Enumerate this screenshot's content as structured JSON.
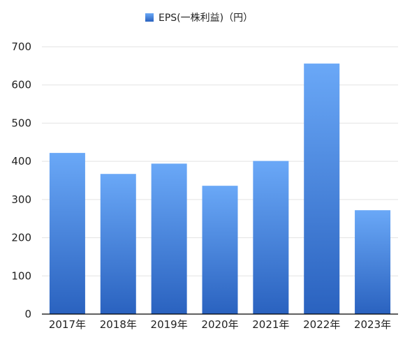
{
  "chart_data": {
    "type": "bar",
    "categories": [
      "2017年",
      "2018年",
      "2019年",
      "2020年",
      "2021年",
      "2022年",
      "2023年"
    ],
    "series": [
      {
        "name": "EPS(一株利益)（円）",
        "values": [
          422,
          367,
          394,
          336,
          401,
          656,
          272
        ]
      }
    ],
    "ylim": [
      0,
      700
    ],
    "yticks": [
      0,
      100,
      200,
      300,
      400,
      500,
      600,
      700
    ],
    "grid": true,
    "legend_position": "top-center",
    "colors": {
      "bar_top": "#6aa8f7",
      "bar_bottom": "#2a62bf",
      "grid": "#e3e3e3",
      "axis": "#000000"
    }
  }
}
